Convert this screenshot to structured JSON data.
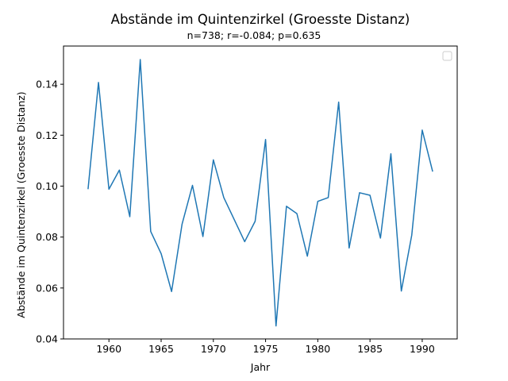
{
  "chart_data": {
    "type": "line",
    "title": "Abstände im Quintenzirkel (Groesste Distanz)",
    "subtitle": "n=738; r=-0.084; p=0.635",
    "xlabel": "Jahr",
    "ylabel": "Abstände im Quintenzirkel (Groesste Distanz)",
    "xlim": [
      1955.65,
      1993.35
    ],
    "ylim": [
      0.04,
      0.155
    ],
    "xticks": [
      1960,
      1965,
      1970,
      1975,
      1980,
      1985,
      1990
    ],
    "xtick_labels": [
      "1960",
      "1965",
      "1970",
      "1975",
      "1980",
      "1985",
      "1990"
    ],
    "yticks": [
      0.04,
      0.06,
      0.08,
      0.1,
      0.12,
      0.14
    ],
    "ytick_labels": [
      "0.04",
      "0.06",
      "0.08",
      "0.10",
      "0.12",
      "0.14"
    ],
    "grid": false,
    "legend": "top-right",
    "series": [
      {
        "color": "#1f77b4",
        "x": [
          1958,
          1959,
          1960,
          1961,
          1962,
          1963,
          1964,
          1965,
          1966,
          1967,
          1968,
          1969,
          1970,
          1971,
          1973,
          1974,
          1975,
          1976,
          1977,
          1978,
          1979,
          1980,
          1981,
          1982,
          1983,
          1984,
          1985,
          1986,
          1987,
          1988,
          1989,
          1990,
          1991
        ],
        "y": [
          0.0988,
          0.1407,
          0.0988,
          0.1063,
          0.088,
          0.1497,
          0.0822,
          0.0735,
          0.0586,
          0.085,
          0.1003,
          0.0802,
          0.1103,
          0.0955,
          0.0782,
          0.0862,
          0.1183,
          0.0451,
          0.0921,
          0.0892,
          0.0725,
          0.094,
          0.0955,
          0.133,
          0.0757,
          0.0974,
          0.0964,
          0.0796,
          0.1127,
          0.0588,
          0.0808,
          0.122,
          0.1057
        ]
      }
    ]
  }
}
